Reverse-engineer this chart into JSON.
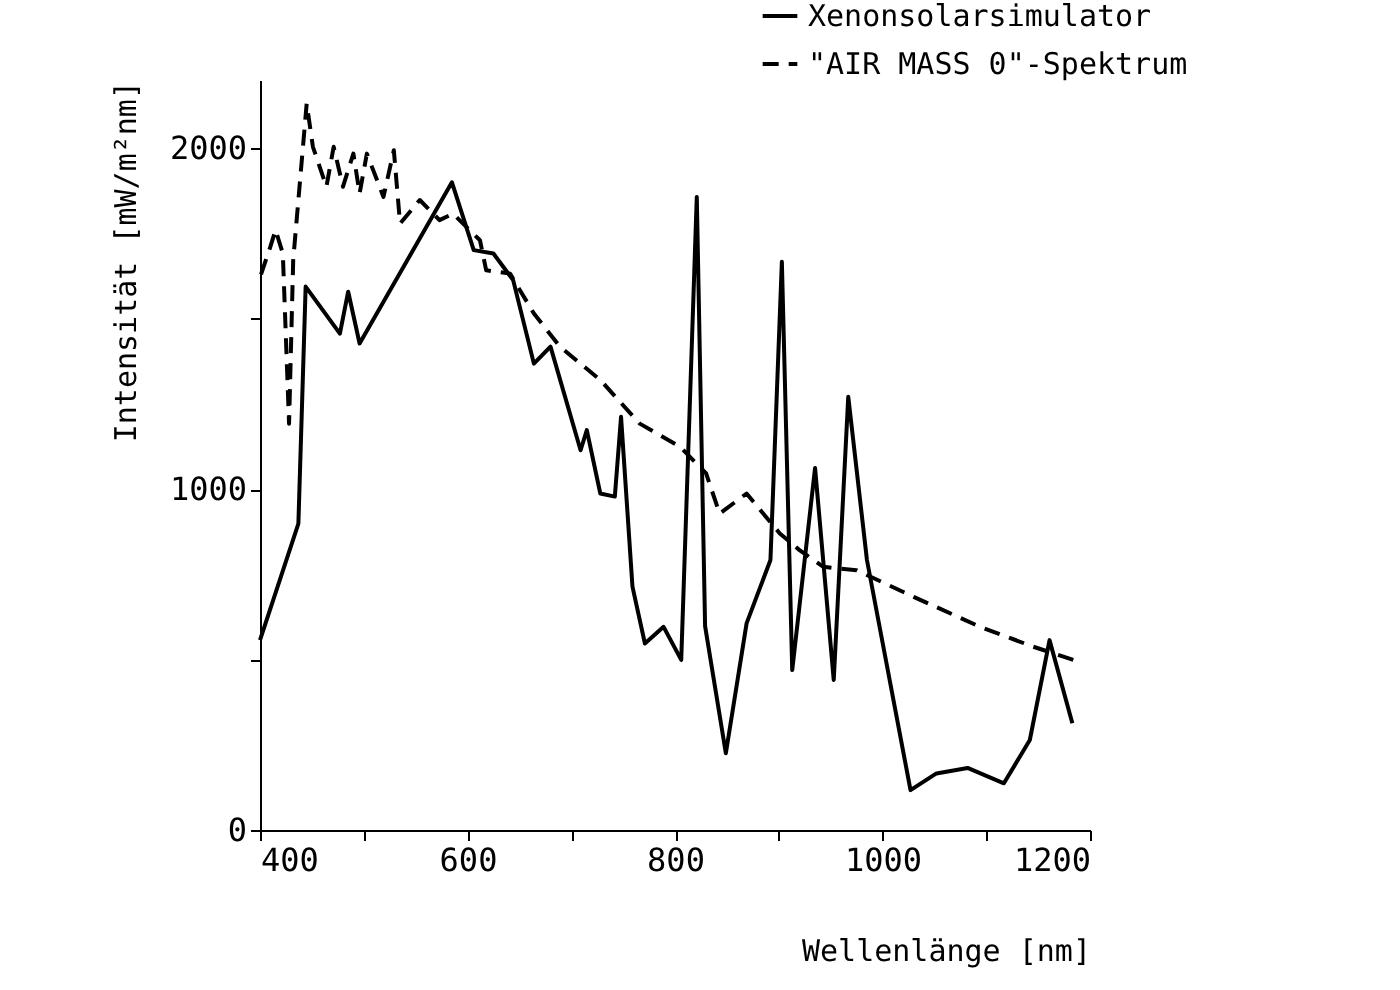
{
  "chart_data": {
    "type": "line",
    "xlabel": "Wellenlänge [nm]",
    "ylabel": "Intensität [mW/m²nm]",
    "xlim": [
      400,
      1200
    ],
    "xticks": [
      400,
      {
        "value": 500,
        "label": null
      },
      600,
      {
        "value": 700,
        "label": null
      },
      800,
      {
        "value": 900,
        "label": null
      },
      1000,
      {
        "value": 1100,
        "label": null
      },
      1200
    ],
    "ylim": [
      0,
      2200
    ],
    "yticks": [
      0,
      {
        "value": 500,
        "label": null
      },
      1000,
      {
        "value": 1500,
        "label": null
      },
      2000
    ],
    "grid": false,
    "legend": "top right",
    "marker": "none",
    "series": [
      {
        "name": "Xenonsolarsimulator",
        "color": "#000000",
        "line_style": "solid",
        "x": [
          400,
          437,
          444,
          477,
          485,
          496,
          585,
          606,
          625,
          644,
          664,
          680,
          709,
          715,
          728,
          742,
          748,
          759,
          771,
          789,
          806,
          821,
          829,
          849,
          869,
          892,
          903,
          913,
          935,
          953,
          967,
          985,
          1027,
          1052,
          1082,
          1117,
          1142,
          1161,
          1183
        ],
        "values": [
          557,
          899,
          1594,
          1456,
          1579,
          1427,
          1900,
          1701,
          1691,
          1613,
          1368,
          1418,
          1114,
          1173,
          987,
          978,
          1212,
          714,
          547,
          596,
          499,
          1857,
          598,
          225,
          606,
          792,
          1667,
          469,
          1062,
          440,
          1271,
          792,
          117,
          166,
          182,
          137,
          264,
          557,
          313
        ]
      },
      {
        "name": "\"AIR MASS 0\"-Spektrum",
        "color": "#000000",
        "line_style": "dashed",
        "x": [
          401,
          410,
          415,
          422,
          428,
          432,
          445,
          451,
          464,
          471,
          480,
          490,
          496,
          503,
          519,
          529,
          535,
          554,
          573,
          586,
          612,
          618,
          641,
          664,
          689,
          728,
          766,
          805,
          830,
          843,
          869,
          901,
          920,
          943,
          975,
          1030,
          1094,
          1145,
          1184
        ],
        "values": [
          1630,
          1711,
          1760,
          1691,
          1192,
          1672,
          2131,
          2004,
          1887,
          2004,
          1887,
          1984,
          1867,
          1984,
          1857,
          1994,
          1779,
          1848,
          1789,
          1808,
          1730,
          1642,
          1632,
          1515,
          1418,
          1320,
          1192,
          1124,
          1046,
          928,
          987,
          870,
          821,
          772,
          762,
          684,
          596,
          538,
          499
        ]
      }
    ]
  }
}
